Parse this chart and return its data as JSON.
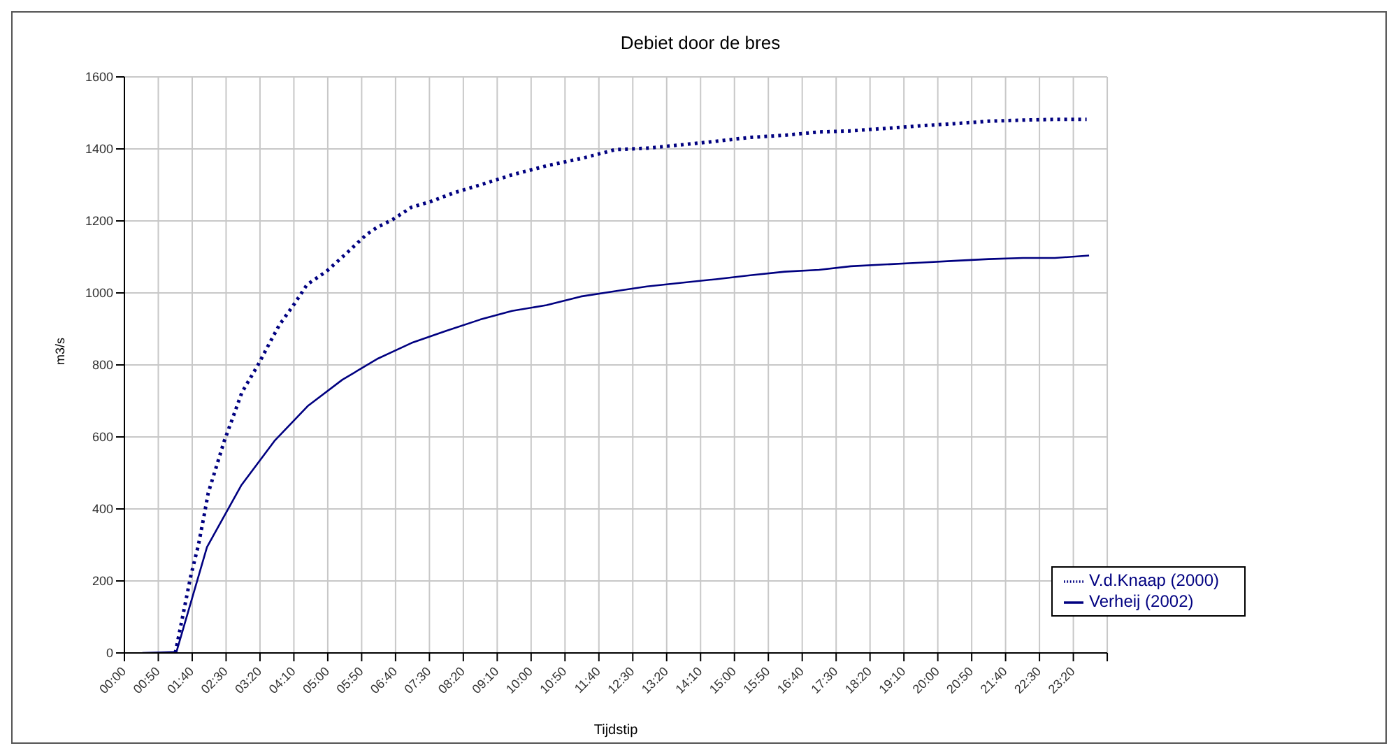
{
  "chart_data": {
    "type": "line",
    "title": "Debiet door de bres",
    "xlabel": "Tijdstip",
    "ylabel": "m3/s",
    "xlim": [
      0,
      24.1667
    ],
    "ylim": [
      0,
      1600
    ],
    "yticks": [
      0,
      200,
      400,
      600,
      800,
      1000,
      1200,
      1400,
      1600
    ],
    "xticks": [
      {
        "value": 0,
        "label": "00:00"
      },
      {
        "value": 0.8333,
        "label": "00:50"
      },
      {
        "value": 1.6667,
        "label": "01:40"
      },
      {
        "value": 2.5,
        "label": "02:30"
      },
      {
        "value": 3.3333,
        "label": "03:20"
      },
      {
        "value": 4.1667,
        "label": "04:10"
      },
      {
        "value": 5,
        "label": "05:00"
      },
      {
        "value": 5.8333,
        "label": "05:50"
      },
      {
        "value": 6.6667,
        "label": "06:40"
      },
      {
        "value": 7.5,
        "label": "07:30"
      },
      {
        "value": 8.3333,
        "label": "08:20"
      },
      {
        "value": 9.1667,
        "label": "09:10"
      },
      {
        "value": 10,
        "label": "10:00"
      },
      {
        "value": 10.8333,
        "label": "10:50"
      },
      {
        "value": 11.6667,
        "label": "11:40"
      },
      {
        "value": 12.5,
        "label": "12:30"
      },
      {
        "value": 13.3333,
        "label": "13:20"
      },
      {
        "value": 14.1667,
        "label": "14:10"
      },
      {
        "value": 15,
        "label": "15:00"
      },
      {
        "value": 15.8333,
        "label": "15:50"
      },
      {
        "value": 16.6667,
        "label": "16:40"
      },
      {
        "value": 17.5,
        "label": "17:30"
      },
      {
        "value": 18.3333,
        "label": "18:20"
      },
      {
        "value": 19.1667,
        "label": "19:10"
      },
      {
        "value": 20,
        "label": "20:00"
      },
      {
        "value": 20.8333,
        "label": "20:50"
      },
      {
        "value": 21.6667,
        "label": "21:40"
      },
      {
        "value": 22.5,
        "label": "22:30"
      },
      {
        "value": 23.3333,
        "label": "23:20"
      },
      {
        "value": 24.1667,
        "label": null
      }
    ],
    "grid": true,
    "legend": "bottom right",
    "marker": "none",
    "series": [
      {
        "name": "V.d.Knaap (2000)",
        "color": "#000080",
        "line_style": "dotted",
        "x": [
          1.25,
          1.43,
          1.63,
          1.82,
          1.97,
          2.06,
          2.45,
          2.65,
          2.89,
          3.28,
          3.57,
          3.81,
          4.2,
          4.49,
          4.97,
          5.46,
          5.95,
          6.21,
          6.6,
          7.06,
          7.51,
          8.1,
          8.75,
          9.53,
          10.38,
          11.29,
          12.07,
          12.85,
          13.76,
          14.61,
          15.39,
          16.24,
          17.08,
          17.86,
          18.71,
          19.56,
          20.4,
          21.25,
          22.1,
          22.88,
          23.66
        ],
        "values": [
          0,
          100,
          213,
          300,
          388,
          444,
          587,
          649,
          724,
          799,
          861,
          911,
          973,
          1023,
          1060,
          1110,
          1162,
          1182,
          1204,
          1238,
          1253,
          1278,
          1300,
          1328,
          1353,
          1375,
          1398,
          1402,
          1412,
          1422,
          1432,
          1438,
          1447,
          1450,
          1457,
          1464,
          1470,
          1477,
          1480,
          1482,
          1482
        ]
      },
      {
        "name": "Verheij (2002)",
        "color": "#000080",
        "line_style": "solid",
        "x": [
          0.44,
          1.28,
          2.03,
          2.87,
          3.69,
          4.52,
          5.36,
          6.24,
          7.06,
          7.9,
          8.75,
          9.53,
          10.38,
          11.22,
          12.07,
          12.85,
          13.7,
          14.54,
          15.39,
          16.24,
          17.08,
          17.86,
          18.71,
          19.56,
          20.4,
          21.25,
          22.1,
          22.88,
          23.72
        ],
        "values": [
          0,
          3,
          294,
          465,
          589,
          687,
          759,
          818,
          861,
          894,
          926,
          950,
          966,
          990,
          1005,
          1018,
          1028,
          1038,
          1049,
          1059,
          1064,
          1074,
          1079,
          1084,
          1089,
          1094,
          1097,
          1097,
          1104
        ]
      }
    ]
  }
}
